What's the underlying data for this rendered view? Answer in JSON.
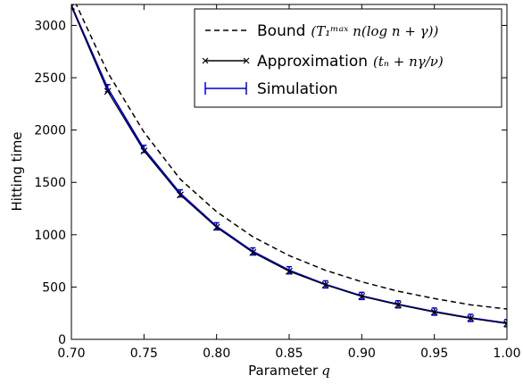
{
  "chart_data": {
    "type": "line",
    "xlabel": "Parameter",
    "xlabel_symbol": "q",
    "ylabel": "Hitting time",
    "xlim": [
      0.7,
      1.0
    ],
    "ylim": [
      0,
      3200
    ],
    "x_ticks": [
      "0.70",
      "0.75",
      "0.80",
      "0.85",
      "0.90",
      "0.95",
      "1.00"
    ],
    "y_ticks": [
      "0",
      "500",
      "1000",
      "1500",
      "2000",
      "2500",
      "3000"
    ],
    "grid": false,
    "legend_position": "top-right",
    "series": [
      {
        "name": "Bound",
        "formula": "(T₁ᵐᵃˣ n(log n + γ))",
        "style": "dashed",
        "color": "#000000",
        "x": [
          0.7,
          0.725,
          0.75,
          0.775,
          0.8,
          0.825,
          0.85,
          0.875,
          0.9,
          0.925,
          0.95,
          0.975,
          1.0
        ],
        "values": [
          3300,
          2550,
          1980,
          1530,
          1220,
          980,
          800,
          660,
          550,
          460,
          390,
          330,
          290
        ]
      },
      {
        "name": "Approximation",
        "formula": "(tₙ + nγ/ν)",
        "style": "solid-x-markers",
        "color": "#000000",
        "x": [
          0.7,
          0.725,
          0.75,
          0.775,
          0.8,
          0.825,
          0.85,
          0.875,
          0.9,
          0.925,
          0.95,
          0.975,
          1.0
        ],
        "values": [
          3180,
          2370,
          1800,
          1380,
          1070,
          830,
          650,
          520,
          410,
          330,
          260,
          200,
          150
        ]
      },
      {
        "name": "Simulation",
        "formula": "",
        "style": "errorbar",
        "color": "#0000cc",
        "x": [
          0.7,
          0.725,
          0.75,
          0.775,
          0.8,
          0.825,
          0.85,
          0.875,
          0.9,
          0.925,
          0.95,
          0.975,
          1.0
        ],
        "values": [
          3190,
          2400,
          1820,
          1395,
          1080,
          840,
          660,
          525,
          415,
          335,
          265,
          205,
          155
        ]
      }
    ]
  }
}
